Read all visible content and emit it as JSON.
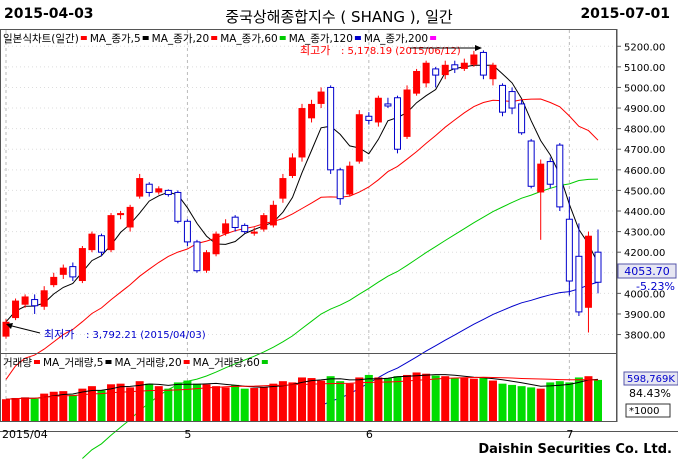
{
  "header": {
    "start_date": "2015-04-03",
    "title": "중국상해종합지수 ( SHANG ), 일간",
    "end_date": "2015-07-01"
  },
  "footer": {
    "brand": "Daishin Securities Co. Ltd."
  },
  "price_legend": [
    {
      "label": "일본식차트(일간)",
      "color": "#ff0000"
    },
    {
      "label": "MA_종가,5",
      "color": "#000000"
    },
    {
      "label": "MA_종가,20",
      "color": "#ff0000"
    },
    {
      "label": "MA_종가,60",
      "color": "#00cc00"
    },
    {
      "label": "MA_종가,120",
      "color": "#0000cc"
    },
    {
      "label": "MA_종가,200",
      "color": "#ff00ff"
    }
  ],
  "volume_legend": [
    {
      "label": "거래량",
      "color": "#ff0000"
    },
    {
      "label": "MA_거래량,5",
      "color": "#000000"
    },
    {
      "label": "MA_거래량,20",
      "color": "#ff0000"
    },
    {
      "label": "MA_거래량,60",
      "color": "#00cc00"
    }
  ],
  "annotations": {
    "high": {
      "label": "최고가",
      "value": ": 5,178.19 (2015/06/12)"
    },
    "low": {
      "label": "최저가",
      "value": ": 3,792.21 (2015/04/03)"
    }
  },
  "price_box": {
    "value": "4053.70",
    "change": "-5.23%"
  },
  "volume_box": {
    "value": "598,769K",
    "pct": "84.43%",
    "unit": "*1000"
  },
  "x_labels": [
    "2015/04",
    "5",
    "6",
    "7"
  ],
  "colors": {
    "up": "#ff0000",
    "down": "#0000cc",
    "vol_up": "#ff0000",
    "vol_down": "#00dd00"
  },
  "chart_data": {
    "type": "candlestick",
    "y_ticks": [
      3800,
      3900,
      4000,
      4100,
      4200,
      4300,
      4400,
      4500,
      4600,
      4700,
      4800,
      4900,
      5000,
      5100,
      5200
    ],
    "ylim": [
      3725,
      5245
    ],
    "month_starts": [
      0,
      19,
      38,
      59
    ],
    "candles": [
      [
        3790,
        3862,
        3780,
        3875
      ],
      [
        3880,
        3965,
        3870,
        3975
      ],
      [
        3945,
        3985,
        3930,
        3995
      ],
      [
        3970,
        3940,
        3900,
        3995
      ],
      [
        3935,
        4015,
        3920,
        4035
      ],
      [
        4040,
        4080,
        4030,
        4100
      ],
      [
        4090,
        4125,
        4070,
        4140
      ],
      [
        4130,
        4080,
        4060,
        4150
      ],
      [
        4060,
        4220,
        4050,
        4230
      ],
      [
        4210,
        4290,
        4200,
        4300
      ],
      [
        4280,
        4200,
        4180,
        4290
      ],
      [
        4210,
        4380,
        4200,
        4390
      ],
      [
        4380,
        4390,
        4360,
        4400
      ],
      [
        4320,
        4420,
        4300,
        4430
      ],
      [
        4470,
        4560,
        4460,
        4580
      ],
      [
        4530,
        4490,
        4470,
        4540
      ],
      [
        4490,
        4510,
        4480,
        4520
      ],
      [
        4500,
        4480,
        4470,
        4505
      ],
      [
        4490,
        4350,
        4340,
        4500
      ],
      [
        4350,
        4250,
        4230,
        4360
      ],
      [
        4250,
        4110,
        4100,
        4260
      ],
      [
        4110,
        4200,
        4100,
        4210
      ],
      [
        4190,
        4290,
        4180,
        4300
      ],
      [
        4290,
        4340,
        4280,
        4360
      ],
      [
        4370,
        4320,
        4300,
        4380
      ],
      [
        4330,
        4300,
        4290,
        4340
      ],
      [
        4290,
        4300,
        4280,
        4320
      ],
      [
        4310,
        4380,
        4300,
        4390
      ],
      [
        4330,
        4430,
        4320,
        4450
      ],
      [
        4460,
        4560,
        4440,
        4580
      ],
      [
        4570,
        4660,
        4560,
        4680
      ],
      [
        4660,
        4900,
        4640,
        4920
      ],
      [
        4850,
        4920,
        4830,
        4940
      ],
      [
        4920,
        4980,
        4900,
        5000
      ],
      [
        5000,
        4600,
        4580,
        5010
      ],
      [
        4600,
        4460,
        4430,
        4610
      ],
      [
        4480,
        4620,
        4470,
        4640
      ],
      [
        4640,
        4870,
        4630,
        4890
      ],
      [
        4860,
        4840,
        4820,
        4880
      ],
      [
        4830,
        4950,
        4810,
        4960
      ],
      [
        4920,
        4910,
        4900,
        4950
      ],
      [
        4950,
        4700,
        4680,
        4960
      ],
      [
        4760,
        4990,
        4750,
        5010
      ],
      [
        4970,
        5080,
        4960,
        5090
      ],
      [
        5020,
        5120,
        5000,
        5130
      ],
      [
        5090,
        5060,
        5000,
        5100
      ],
      [
        5060,
        5110,
        5040,
        5130
      ],
      [
        5110,
        5090,
        5070,
        5130
      ],
      [
        5090,
        5120,
        5080,
        5140
      ],
      [
        5110,
        5160,
        5100,
        5178
      ],
      [
        5170,
        5060,
        5040,
        5180
      ],
      [
        5040,
        5110,
        5010,
        5120
      ],
      [
        5010,
        4880,
        4860,
        5020
      ],
      [
        4980,
        4900,
        4870,
        5000
      ],
      [
        4920,
        4780,
        4770,
        4940
      ],
      [
        4740,
        4520,
        4510,
        4750
      ],
      [
        4490,
        4630,
        4260,
        4650
      ],
      [
        4640,
        4530,
        4510,
        4660
      ],
      [
        4720,
        4420,
        4400,
        4730
      ],
      [
        4360,
        4060,
        3990,
        4470
      ],
      [
        4180,
        3910,
        3890,
        4340
      ],
      [
        3930,
        4280,
        3810,
        4300
      ],
      [
        4200,
        4054,
        4000,
        4310
      ]
    ],
    "volume_ylim": [
      0,
      900
    ],
    "volume": [
      350,
      370,
      380,
      360,
      440,
      470,
      480,
      420,
      520,
      560,
      490,
      590,
      600,
      540,
      640,
      600,
      560,
      520,
      620,
      650,
      600,
      590,
      560,
      540,
      580,
      520,
      530,
      540,
      600,
      640,
      620,
      700,
      690,
      650,
      720,
      640,
      600,
      700,
      740,
      700,
      690,
      720,
      740,
      780,
      760,
      730,
      720,
      690,
      700,
      680,
      690,
      650,
      600,
      580,
      560,
      540,
      520,
      620,
      640,
      620,
      700,
      720,
      660
    ]
  }
}
